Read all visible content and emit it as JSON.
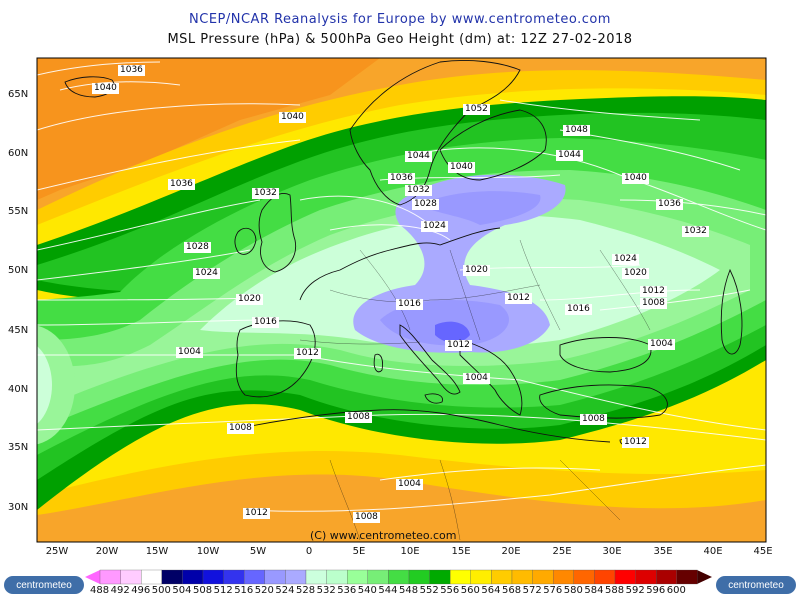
{
  "header": {
    "title": "NCEP/NCAR Reanalysis for Europe by www.centrometeo.com",
    "subtitle": "MSL Pressure (hPa) & 500hPa Geo Height (dm) at: 12Z 27-02-2018"
  },
  "map": {
    "lat_labels": [
      "65N",
      "60N",
      "55N",
      "50N",
      "45N",
      "40N",
      "35N",
      "30N"
    ],
    "lon_labels": [
      "25W",
      "20W",
      "15W",
      "10W",
      "5W",
      "0",
      "5E",
      "10E",
      "15E",
      "20E",
      "25E",
      "30E",
      "35E",
      "40E",
      "45E"
    ],
    "isobar_labels": [
      "1036",
      "1040",
      "1052",
      "1040",
      "1048",
      "1044",
      "1044",
      "1040",
      "1036",
      "1040",
      "1036",
      "1032",
      "1032",
      "1028",
      "1024",
      "1036",
      "1032",
      "1028",
      "1024",
      "1020",
      "1024",
      "1020",
      "1016",
      "1012",
      "1016",
      "1008",
      "1012",
      "1020",
      "1012",
      "1008",
      "1016",
      "1004",
      "1012",
      "1004",
      "1004",
      "1008",
      "1008",
      "1008",
      "1012",
      "1004",
      "1012",
      "1008"
    ],
    "copyright": "(C) www.centrometeo.com",
    "colors": {
      "ocean_low": "#aef0ae",
      "high_orange": "#f7951d"
    }
  },
  "legend": {
    "labels": [
      "488",
      "492",
      "496",
      "500",
      "504",
      "508",
      "512",
      "516",
      "520",
      "524",
      "528",
      "532",
      "536",
      "540",
      "544",
      "548",
      "552",
      "556",
      "560",
      "564",
      "568",
      "572",
      "576",
      "580",
      "584",
      "588",
      "592",
      "596",
      "600"
    ],
    "colors": [
      "#ff99ff",
      "#ffccff",
      "#ffffff",
      "#000066",
      "#0000aa",
      "#1111dd",
      "#3333ee",
      "#6666ff",
      "#9999ff",
      "#aaaaff",
      "#ccffdd",
      "#bbffcc",
      "#99ff99",
      "#77ee77",
      "#44dd44",
      "#22cc22",
      "#00aa00",
      "#ffff00",
      "#ffee00",
      "#ffcc00",
      "#ffbb00",
      "#ffaa00",
      "#ff8800",
      "#ff6600",
      "#ff4400",
      "#ff0000",
      "#dd0000",
      "#aa0000",
      "#660000"
    ],
    "logo_text": "centrometeo"
  }
}
